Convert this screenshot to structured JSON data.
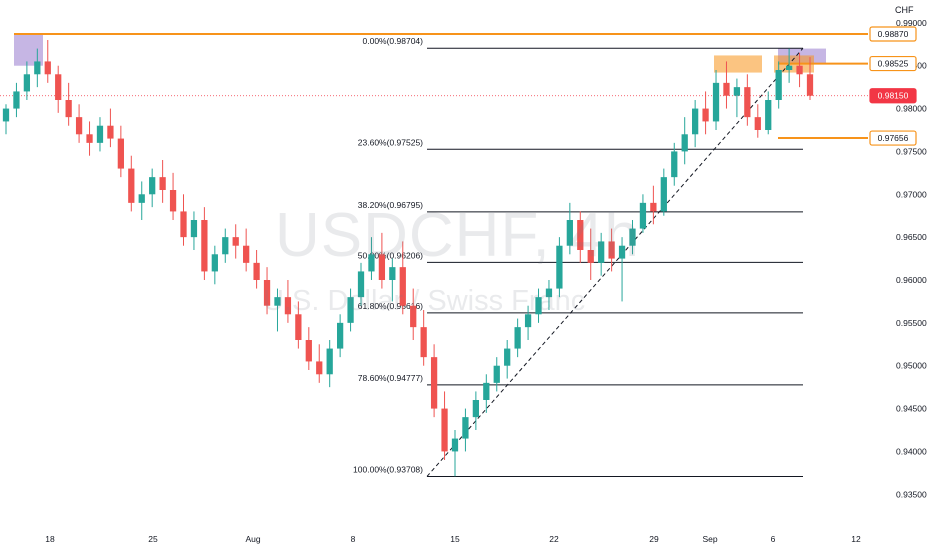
{
  "symbol": {
    "title": "USDCHF, 4h",
    "subtitle": "U.S. Dollar / Swiss Franc",
    "currency": "CHF"
  },
  "colors": {
    "up": "#26a69a",
    "down": "#ef5350",
    "orange": "#f7931a",
    "purple": "#b39ddb",
    "current": "#f23645",
    "fib_line": "#131722",
    "grid_text": "#131722"
  },
  "chart_data": {
    "type": "candlestick",
    "y_axis_ticks": [
      0.99,
      0.985,
      0.98,
      0.975,
      0.97,
      0.965,
      0.96,
      0.955,
      0.95,
      0.945,
      0.94,
      0.935
    ],
    "ylim": [
      0.932,
      0.9915
    ],
    "x_tick_labels": [
      "18",
      "25",
      "Aug",
      "8",
      "15",
      "22",
      "29",
      "Sep",
      "6",
      "12"
    ],
    "price_labels": [
      {
        "value": 0.9887,
        "text": "0.98870",
        "style": "orange"
      },
      {
        "value": 0.98525,
        "text": "0.98525",
        "style": "orange"
      },
      {
        "value": 0.9815,
        "text": "0.98150",
        "style": "current"
      },
      {
        "value": 0.97656,
        "text": "0.97656",
        "style": "orange"
      }
    ],
    "fibonacci": [
      {
        "label": "0.00%(0.98704)",
        "value": 0.98704
      },
      {
        "label": "23.60%(0.97525)",
        "value": 0.97525
      },
      {
        "label": "38.20%(0.96795)",
        "value": 0.96795
      },
      {
        "label": "50.00%(0.96206)",
        "value": 0.96206
      },
      {
        "label": "61.80%(0.95616)",
        "value": 0.95616
      },
      {
        "label": "78.60%(0.94777)",
        "value": 0.94777
      },
      {
        "label": "100.00%(0.93708)",
        "value": 0.93708
      }
    ],
    "horizontal_levels": [
      {
        "value": 0.9887,
        "color": "orange",
        "extent": "full"
      },
      {
        "value": 0.98525,
        "color": "orange",
        "extent": "recent"
      },
      {
        "value": 0.97656,
        "color": "orange",
        "extent": "recent"
      }
    ],
    "zones": [
      {
        "name": "supply-zone-left",
        "y_low": 0.985,
        "y_high": 0.9887,
        "color": "purple"
      },
      {
        "name": "supply-zone-right",
        "y_low": 0.9852,
        "y_high": 0.987,
        "color": "purple"
      },
      {
        "name": "resistance-zone-a",
        "y_low": 0.9842,
        "y_high": 0.9862,
        "color": "orange"
      },
      {
        "name": "resistance-zone-b",
        "y_low": 0.9842,
        "y_high": 0.9862,
        "color": "orange"
      }
    ],
    "current_price": 0.9815,
    "candles": [
      [
        0.9785,
        0.9805,
        0.977,
        0.98
      ],
      [
        0.98,
        0.983,
        0.979,
        0.982
      ],
      [
        0.982,
        0.9855,
        0.981,
        0.984
      ],
      [
        0.984,
        0.987,
        0.9825,
        0.9855
      ],
      [
        0.9855,
        0.988,
        0.983,
        0.984
      ],
      [
        0.984,
        0.985,
        0.9795,
        0.981
      ],
      [
        0.981,
        0.983,
        0.978,
        0.979
      ],
      [
        0.979,
        0.9805,
        0.976,
        0.977
      ],
      [
        0.977,
        0.9785,
        0.9745,
        0.976
      ],
      [
        0.976,
        0.979,
        0.975,
        0.978
      ],
      [
        0.978,
        0.98,
        0.9755,
        0.9765
      ],
      [
        0.9765,
        0.978,
        0.972,
        0.973
      ],
      [
        0.973,
        0.9745,
        0.968,
        0.969
      ],
      [
        0.969,
        0.9715,
        0.967,
        0.97
      ],
      [
        0.97,
        0.973,
        0.9685,
        0.972
      ],
      [
        0.972,
        0.974,
        0.969,
        0.9705
      ],
      [
        0.9705,
        0.9725,
        0.967,
        0.968
      ],
      [
        0.968,
        0.97,
        0.964,
        0.965
      ],
      [
        0.965,
        0.968,
        0.9635,
        0.967
      ],
      [
        0.967,
        0.9685,
        0.96,
        0.961
      ],
      [
        0.961,
        0.964,
        0.9595,
        0.963
      ],
      [
        0.963,
        0.966,
        0.962,
        0.965
      ],
      [
        0.965,
        0.9665,
        0.9625,
        0.964
      ],
      [
        0.964,
        0.966,
        0.961,
        0.962
      ],
      [
        0.962,
        0.9635,
        0.959,
        0.96
      ],
      [
        0.96,
        0.9615,
        0.956,
        0.957
      ],
      [
        0.957,
        0.959,
        0.954,
        0.958
      ],
      [
        0.958,
        0.96,
        0.955,
        0.956
      ],
      [
        0.956,
        0.9575,
        0.952,
        0.953
      ],
      [
        0.953,
        0.9545,
        0.9495,
        0.9505
      ],
      [
        0.9505,
        0.9525,
        0.948,
        0.949
      ],
      [
        0.949,
        0.953,
        0.9475,
        0.952
      ],
      [
        0.952,
        0.956,
        0.951,
        0.955
      ],
      [
        0.955,
        0.959,
        0.954,
        0.958
      ],
      [
        0.958,
        0.962,
        0.957,
        0.961
      ],
      [
        0.961,
        0.965,
        0.96,
        0.963
      ],
      [
        0.963,
        0.9655,
        0.959,
        0.96
      ],
      [
        0.96,
        0.9625,
        0.9575,
        0.9615
      ],
      [
        0.9615,
        0.9645,
        0.956,
        0.957
      ],
      [
        0.957,
        0.959,
        0.953,
        0.9545
      ],
      [
        0.9545,
        0.9565,
        0.95,
        0.951
      ],
      [
        0.951,
        0.9525,
        0.944,
        0.945
      ],
      [
        0.945,
        0.947,
        0.939,
        0.94
      ],
      [
        0.94,
        0.9425,
        0.9371,
        0.9415
      ],
      [
        0.9415,
        0.945,
        0.94,
        0.944
      ],
      [
        0.944,
        0.947,
        0.9425,
        0.946
      ],
      [
        0.946,
        0.949,
        0.9445,
        0.948
      ],
      [
        0.948,
        0.951,
        0.947,
        0.95
      ],
      [
        0.95,
        0.953,
        0.9485,
        0.952
      ],
      [
        0.952,
        0.9555,
        0.951,
        0.9545
      ],
      [
        0.9545,
        0.957,
        0.953,
        0.956
      ],
      [
        0.956,
        0.959,
        0.955,
        0.958
      ],
      [
        0.958,
        0.96,
        0.9565,
        0.959
      ],
      [
        0.959,
        0.965,
        0.958,
        0.964
      ],
      [
        0.964,
        0.969,
        0.963,
        0.967
      ],
      [
        0.967,
        0.968,
        0.962,
        0.9635
      ],
      [
        0.9635,
        0.966,
        0.96,
        0.962
      ],
      [
        0.962,
        0.9655,
        0.9605,
        0.9645
      ],
      [
        0.9645,
        0.966,
        0.961,
        0.9625
      ],
      [
        0.9625,
        0.965,
        0.9575,
        0.964
      ],
      [
        0.964,
        0.967,
        0.963,
        0.966
      ],
      [
        0.966,
        0.97,
        0.9655,
        0.969
      ],
      [
        0.969,
        0.971,
        0.9665,
        0.968
      ],
      [
        0.968,
        0.973,
        0.9675,
        0.972
      ],
      [
        0.972,
        0.976,
        0.971,
        0.975
      ],
      [
        0.975,
        0.979,
        0.9735,
        0.977
      ],
      [
        0.977,
        0.981,
        0.9755,
        0.98
      ],
      [
        0.98,
        0.982,
        0.977,
        0.9785
      ],
      [
        0.9785,
        0.9845,
        0.9775,
        0.983
      ],
      [
        0.983,
        0.9855,
        0.98,
        0.9815
      ],
      [
        0.9815,
        0.9835,
        0.979,
        0.9825
      ],
      [
        0.9825,
        0.984,
        0.978,
        0.979
      ],
      [
        0.979,
        0.9805,
        0.9766,
        0.9775
      ],
      [
        0.9775,
        0.982,
        0.977,
        0.981
      ],
      [
        0.981,
        0.9855,
        0.98,
        0.9845
      ],
      [
        0.9845,
        0.987,
        0.983,
        0.985
      ],
      [
        0.985,
        0.9865,
        0.9825,
        0.984
      ],
      [
        0.984,
        0.986,
        0.981,
        0.9815
      ]
    ]
  }
}
